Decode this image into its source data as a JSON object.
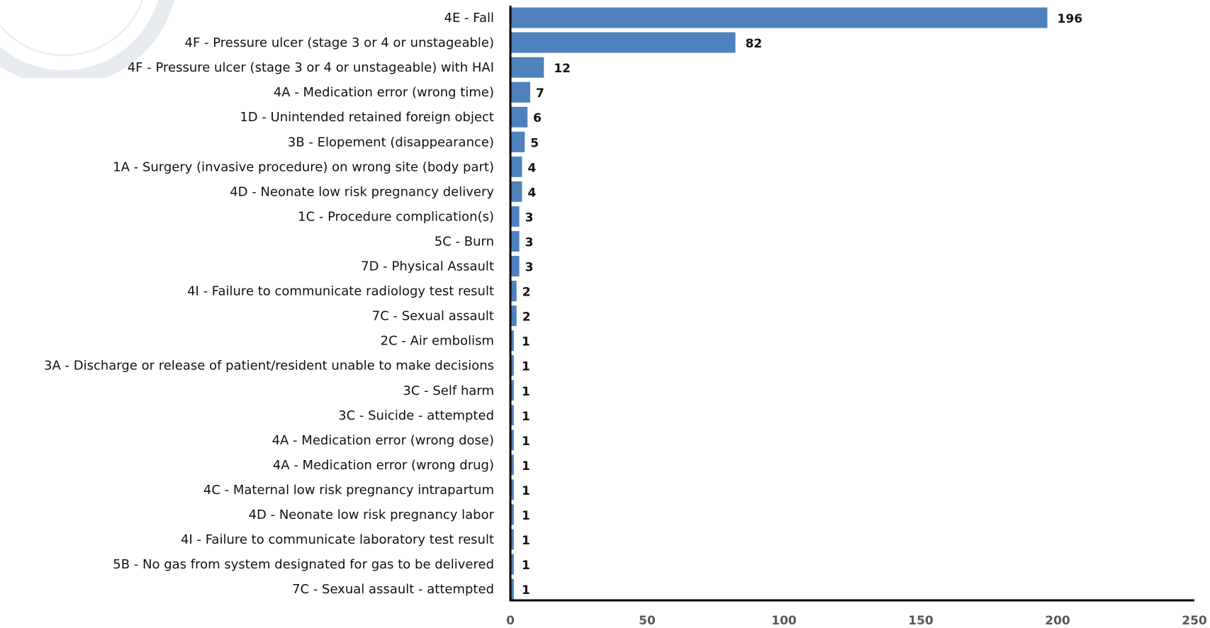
{
  "chart_data": {
    "type": "bar",
    "orientation": "horizontal",
    "title": "",
    "xlabel": "",
    "ylabel": "",
    "xlim": [
      0,
      250
    ],
    "xticks": [
      0,
      50,
      100,
      150,
      200,
      250
    ],
    "grid": false,
    "legend": "none",
    "bar_color": "#4f81bd",
    "categories": [
      "4E - Fall",
      "4F - Pressure ulcer (stage 3 or 4 or unstageable)",
      "4F - Pressure ulcer (stage 3 or 4 or unstageable) with HAI",
      "4A - Medication error (wrong time)",
      "1D - Unintended retained foreign object",
      "3B - Elopement (disappearance)",
      "1A - Surgery (invasive procedure) on wrong site (body part)",
      "4D - Neonate low risk pregnancy delivery",
      "1C - Procedure complication(s)",
      "5C - Burn",
      "7D - Physical Assault",
      "4I - Failure to communicate radiology test result",
      "7C - Sexual assault",
      "2C - Air embolism",
      "3A - Discharge or release of patient/resident unable to make decisions",
      "3C - Self harm",
      "3C - Suicide - attempted",
      "4A - Medication error (wrong dose)",
      "4A - Medication error (wrong drug)",
      "4C - Maternal low risk pregnancy intrapartum",
      "4D - Neonate low risk pregnancy labor",
      "4I - Failure to communicate laboratory test result",
      "5B - No gas from system designated for gas to be delivered",
      "7C - Sexual assault - attempted"
    ],
    "values": [
      196,
      82,
      12,
      7,
      6,
      5,
      4,
      4,
      3,
      3,
      3,
      2,
      2,
      1,
      1,
      1,
      1,
      1,
      1,
      1,
      1,
      1,
      1,
      1
    ]
  }
}
